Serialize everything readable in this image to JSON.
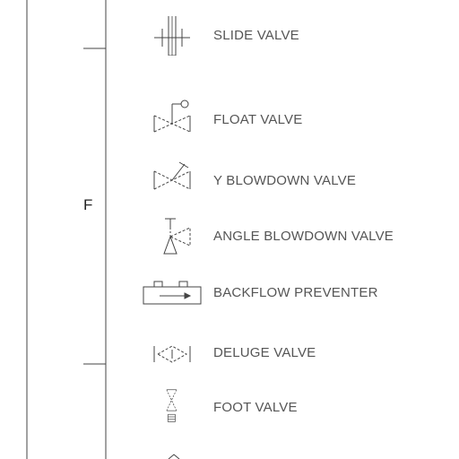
{
  "zone": {
    "letter": "F"
  },
  "legend": [
    {
      "symbol": "slide-valve-symbol",
      "label": "SLIDE VALVE"
    },
    {
      "symbol": "float-valve-symbol",
      "label": "FLOAT VALVE"
    },
    {
      "symbol": "y-blowdown-valve-symbol",
      "label": "Y BLOWDOWN VALVE"
    },
    {
      "symbol": "angle-blowdown-valve-symbol",
      "label": "ANGLE BLOWDOWN VALVE"
    },
    {
      "symbol": "backflow-preventer-symbol",
      "label": "BACKFLOW PREVENTER"
    },
    {
      "symbol": "deluge-valve-symbol",
      "label": "DELUGE VALVE"
    },
    {
      "symbol": "foot-valve-symbol",
      "label": "FOOT VALVE"
    }
  ],
  "colors": {
    "line": "#333333",
    "text": "#555555",
    "background": "#ffffff"
  }
}
